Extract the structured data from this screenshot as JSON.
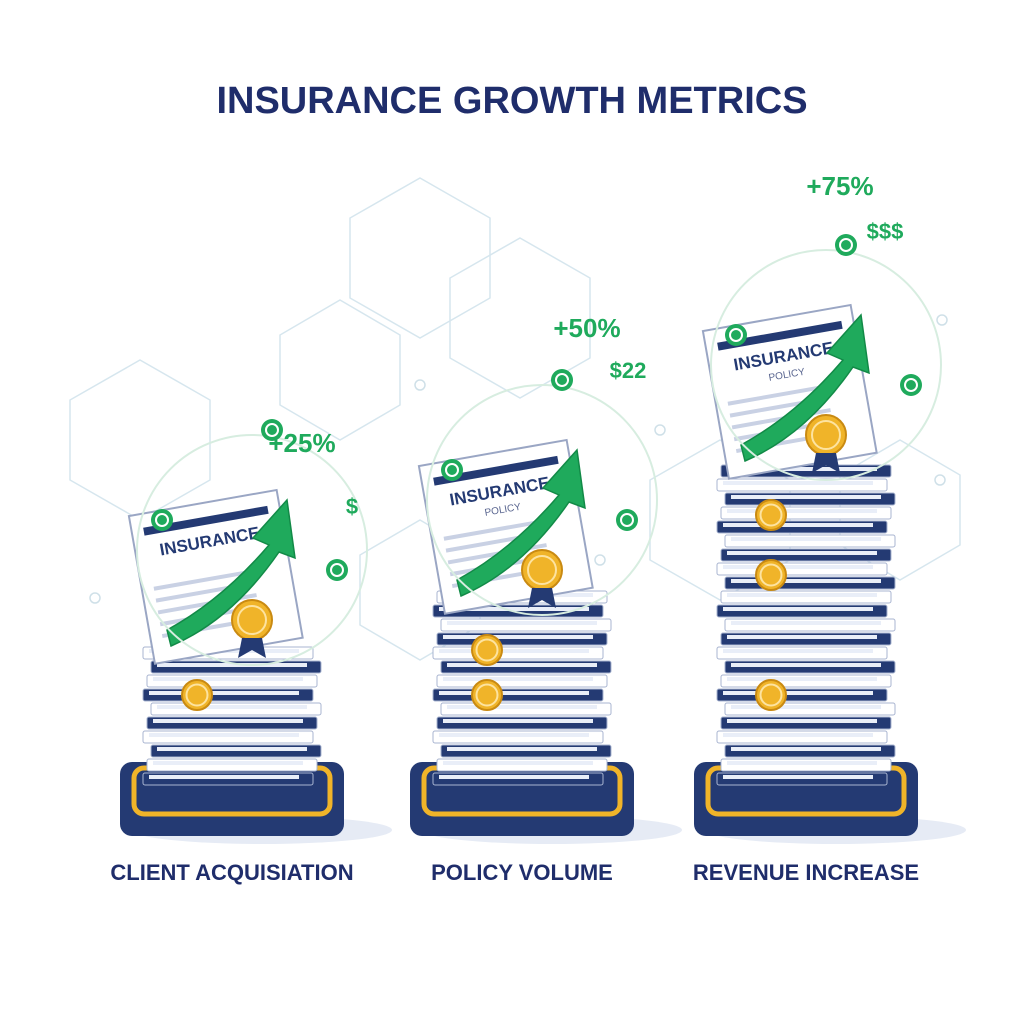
{
  "header": {
    "title": "INSURANCE GROWTH METRICS"
  },
  "panels": [
    {
      "label": "CLIENT ACQUISIATION",
      "growth": "+25%",
      "money": "$",
      "doc_title": "INSURANCE"
    },
    {
      "label": "POLICY VOLUME",
      "growth": "+50%",
      "money": "$22",
      "doc_title": "INSURANCE",
      "doc_subtitle": "POLICY"
    },
    {
      "label": "REVENUE INCREASE",
      "growth": "+75%",
      "money": "$$$",
      "doc_title": "INSURANCE",
      "doc_subtitle": "POLICY"
    }
  ]
}
